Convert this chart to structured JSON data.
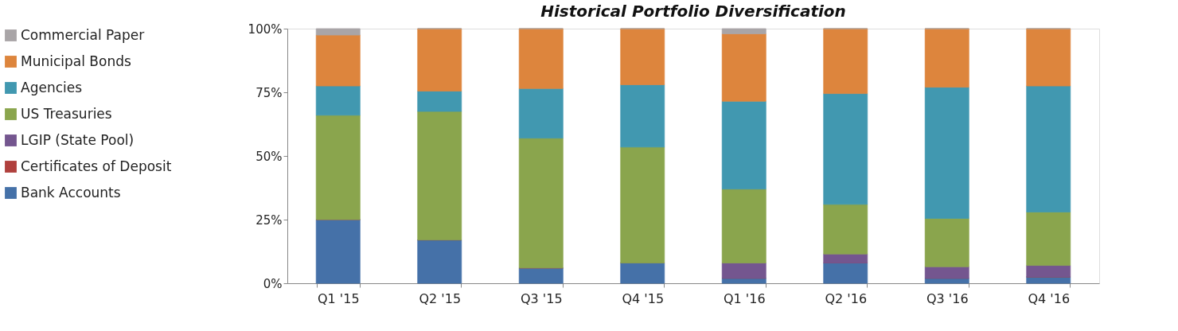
{
  "chart_data": {
    "type": "bar",
    "title": "Historical Portfolio Diversification",
    "stacked": true,
    "legend": "left",
    "grid": false,
    "categories": [
      "Q1 '15",
      "Q2 '15",
      "Q3 '15",
      "Q4 '15",
      "Q1 '16",
      "Q2 '16",
      "Q3 '16",
      "Q4 '16"
    ],
    "ylim": [
      0,
      100
    ],
    "yticks": [
      {
        "value": 0,
        "label": "0%"
      },
      {
        "value": 25,
        "label": "25%"
      },
      {
        "value": 50,
        "label": "50%"
      },
      {
        "value": 75,
        "label": "75%"
      },
      {
        "value": 100,
        "label": "100%"
      }
    ],
    "series": [
      {
        "name": "Bank Accounts",
        "color": "#4571a8",
        "values": [
          25,
          17,
          6,
          8,
          2,
          8,
          2,
          2.5
        ]
      },
      {
        "name": "Certificates of Deposit",
        "color": "#b0403d",
        "values": [
          0,
          0,
          0,
          0,
          0,
          0,
          0,
          0
        ]
      },
      {
        "name": "LGIP (State Pool)",
        "color": "#74568f",
        "values": [
          0,
          0,
          0,
          0,
          6,
          3.5,
          4.5,
          4.5
        ]
      },
      {
        "name": "US Treasuries",
        "color": "#8aa54d",
        "values": [
          41,
          50.5,
          51,
          45.5,
          29,
          19.5,
          19,
          21
        ]
      },
      {
        "name": "Agencies",
        "color": "#4198b0",
        "values": [
          11.5,
          8,
          19.5,
          24.5,
          34.5,
          43.5,
          51.5,
          49.5
        ]
      },
      {
        "name": "Municipal Bonds",
        "color": "#dd853d",
        "values": [
          20,
          24.5,
          23.5,
          22,
          26.5,
          25.5,
          23,
          22.5
        ]
      },
      {
        "name": "Commercial Paper",
        "color": "#a9a5a7",
        "values": [
          2.5,
          0,
          0,
          0,
          2,
          0,
          0,
          0
        ]
      }
    ]
  }
}
